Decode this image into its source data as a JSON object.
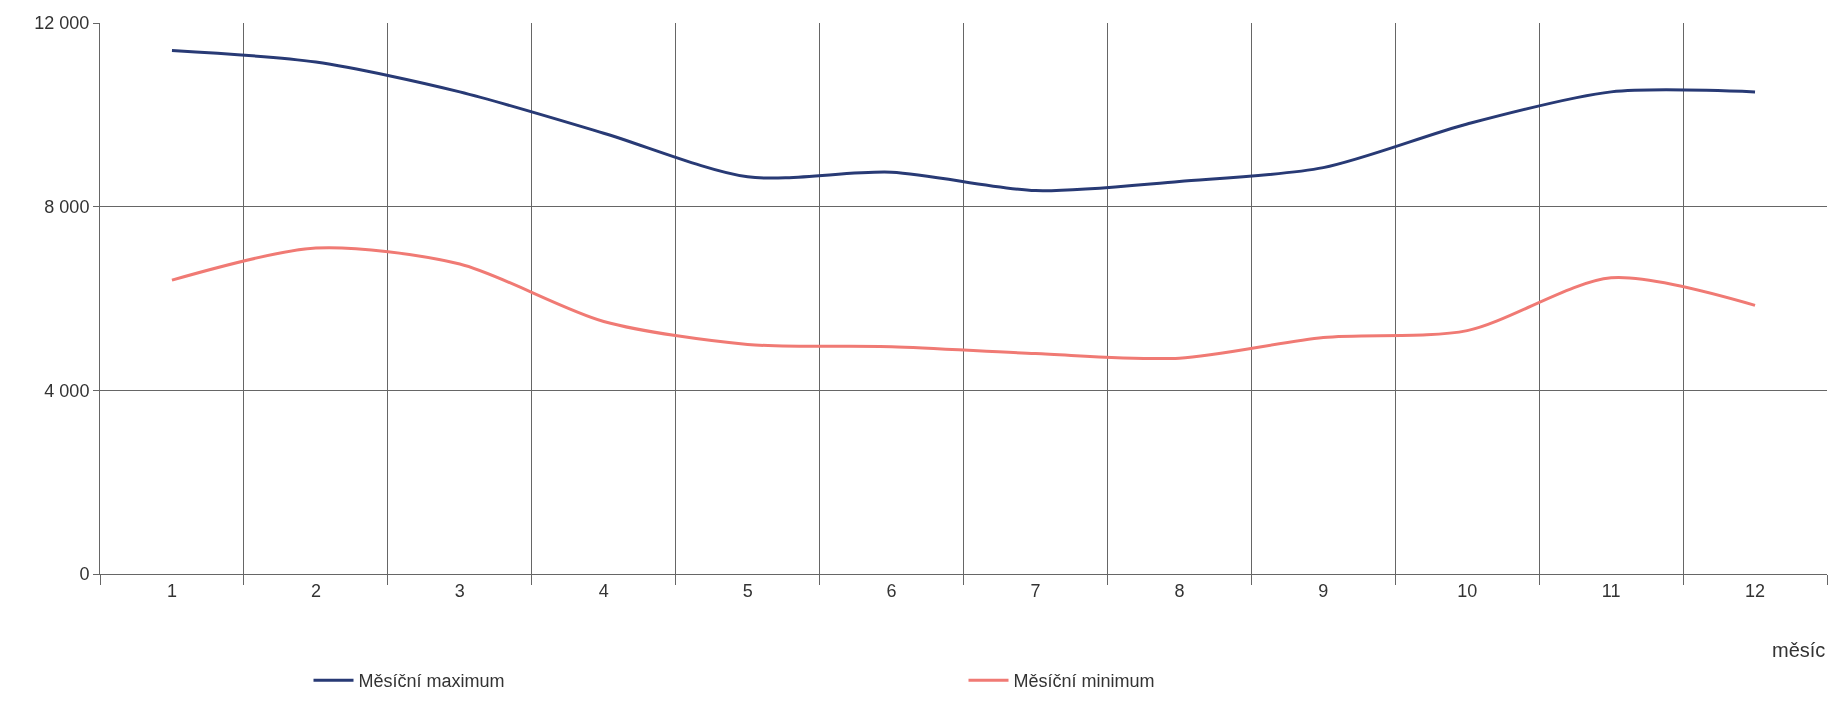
{
  "chart_data": {
    "type": "line",
    "xlabel": "měsíc",
    "categories": [
      "1",
      "2",
      "3",
      "4",
      "5",
      "6",
      "7",
      "8",
      "9",
      "10",
      "11",
      "12"
    ],
    "series": [
      {
        "name": "Měsíční maximum",
        "color": "#283a75",
        "values": [
          11400,
          11150,
          10500,
          9600,
          8650,
          8750,
          8350,
          8550,
          8850,
          9800,
          10500,
          10500
        ]
      },
      {
        "name": "Měsíční minimum",
        "color": "#f07a74",
        "values": [
          6400,
          7100,
          6750,
          5500,
          5000,
          4950,
          4800,
          4700,
          5150,
          5300,
          6450,
          5850
        ]
      }
    ],
    "ylim": [
      0,
      12000
    ],
    "yticks": [
      0,
      {
        "value": 4000,
        "label": "4 000"
      },
      {
        "value": 8000,
        "label": "8 000"
      },
      {
        "value": 12000,
        "label": "12 000"
      }
    ],
    "grid": true,
    "legend": "bottom",
    "marker": "none",
    "line_style": "solid"
  }
}
